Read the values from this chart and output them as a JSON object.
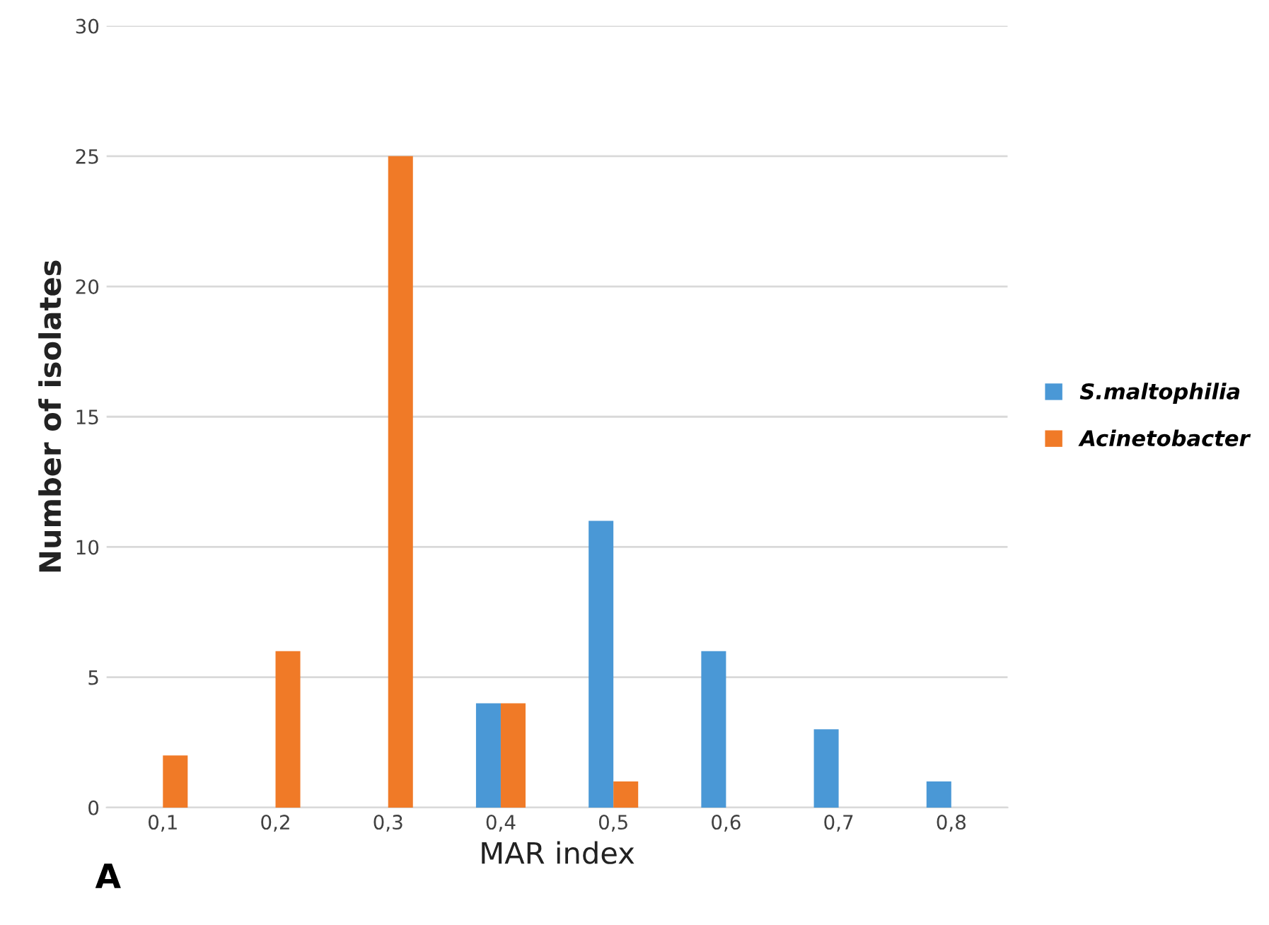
{
  "chart_data": {
    "type": "bar",
    "xlabel": "MAR index",
    "ylabel": "Number of isolates",
    "categories": [
      "0,1",
      "0,2",
      "0,3",
      "0,4",
      "0,5",
      "0,6",
      "0,7",
      "0,8"
    ],
    "series": [
      {
        "name": "S.maltophilia",
        "color": "#4a98d6",
        "values": [
          0,
          0,
          0,
          4,
          11,
          6,
          3,
          1
        ]
      },
      {
        "name": "Acinetobacter",
        "color": "#f07a27",
        "values": [
          2,
          6,
          25,
          4,
          1,
          0,
          0,
          0
        ]
      }
    ],
    "ylim": [
      0,
      30
    ],
    "yticks": [
      0,
      5,
      10,
      15,
      20,
      25,
      30
    ],
    "grid": "y",
    "legend": "right",
    "annotations": [
      "A"
    ]
  }
}
